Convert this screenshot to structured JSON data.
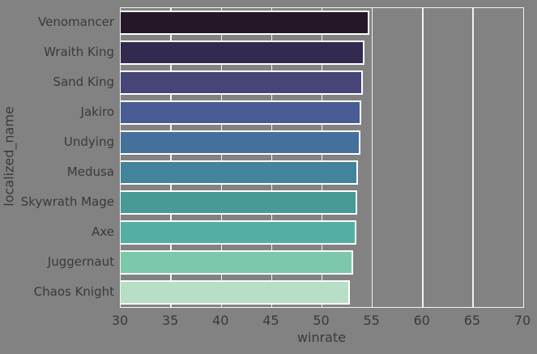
{
  "figure": {
    "background_color": "#828282",
    "plot_background_color": "#828282",
    "grid_color": "#f2f2f2",
    "spine_color": "#f2f2f2",
    "bar_edge_color": "#ffffff",
    "text_color": "#3a3a3a"
  },
  "chart_data": {
    "type": "bar",
    "orientation": "horizontal",
    "xlabel": "winrate",
    "ylabel": "localized_name",
    "xlim": [
      30,
      70
    ],
    "xticks": [
      30,
      35,
      40,
      45,
      50,
      55,
      60,
      65,
      70
    ],
    "grid": true,
    "legend": false,
    "categories": [
      "Venomancer",
      "Wraith King",
      "Sand King",
      "Jakiro",
      "Undying",
      "Medusa",
      "Skywrath Mage",
      "Axe",
      "Juggernaut",
      "Chaos Knight"
    ],
    "values": [
      54.7,
      54.2,
      54.1,
      53.9,
      53.8,
      53.6,
      53.5,
      53.4,
      53.1,
      52.8
    ],
    "bar_colors": [
      "#241727",
      "#34294e",
      "#454578",
      "#4a5c95",
      "#45709b",
      "#42849b",
      "#479a96",
      "#54aea2",
      "#7cc8ab",
      "#b6dfc5"
    ]
  }
}
